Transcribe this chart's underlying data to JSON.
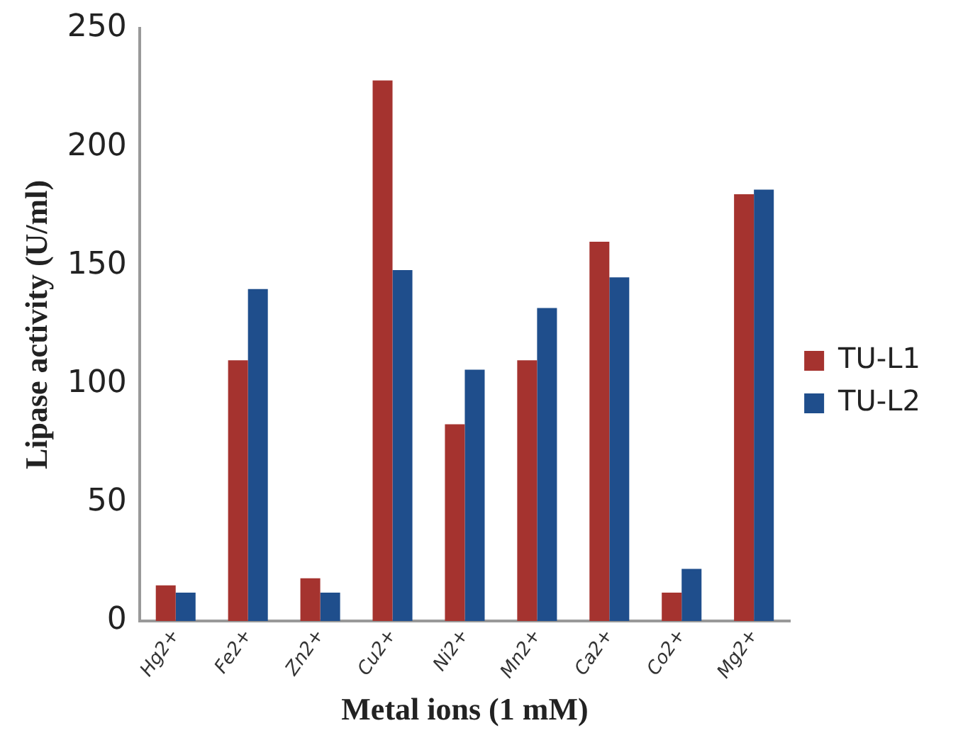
{
  "chart_data": {
    "type": "bar",
    "xlabel": "Metal ions (1 mM)",
    "ylabel": "Lipase activity (U/ml)",
    "categories": [
      "Hg2+",
      "Fe2+",
      "Zn2+",
      "Cu2+",
      "Ni2+",
      "Mn2+",
      "Ca2+",
      "Co2+",
      "Mg2+"
    ],
    "series": [
      {
        "name": "TU-L1",
        "color": "#a5332f",
        "values": [
          15,
          110,
          18,
          228,
          83,
          110,
          160,
          12,
          180
        ]
      },
      {
        "name": "TU-L2",
        "color": "#1f4e8c",
        "values": [
          12,
          140,
          12,
          148,
          106,
          132,
          145,
          22,
          182
        ]
      }
    ],
    "ylim": [
      0,
      250
    ],
    "yticks": [
      0,
      50,
      100,
      150,
      200,
      250
    ],
    "grid": false,
    "legend": "right"
  }
}
